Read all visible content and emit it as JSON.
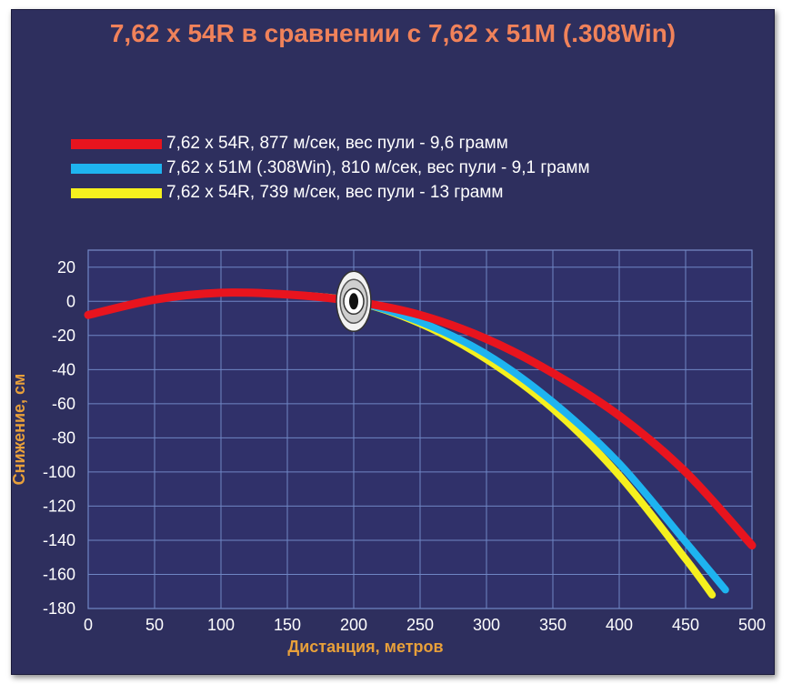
{
  "chart_data": {
    "type": "line",
    "title": "7,62 x 54R в сравнении с 7,62 x 51M (.308Win)",
    "xlabel": "Дистанция, метров",
    "ylabel": "Снижение, см",
    "xlim": [
      0,
      500
    ],
    "ylim": [
      -180,
      30
    ],
    "x_ticks": [
      0,
      50,
      100,
      150,
      200,
      250,
      300,
      350,
      400,
      450,
      500
    ],
    "y_ticks": [
      20,
      0,
      -20,
      -40,
      -60,
      -80,
      -100,
      -120,
      -140,
      -160,
      -180
    ],
    "grid": true,
    "zero_point": {
      "x": 200,
      "y": 0,
      "marker": "target-icon"
    },
    "series": [
      {
        "name": "7,62 x 54R, 877 м/сек, вес пули - 9,6 грамм",
        "color": "#e8141e",
        "x": [
          0,
          50,
          100,
          150,
          200,
          250,
          300,
          350,
          400,
          450,
          500
        ],
        "y": [
          -8,
          1,
          5,
          4,
          0,
          -8,
          -22,
          -42,
          -67,
          -100,
          -143
        ]
      },
      {
        "name": "7,62 x 51M (.308Win), 810 м/сек, вес пули - 9,1 грамм",
        "color": "#1eb4f0",
        "x": [
          0,
          50,
          100,
          150,
          200,
          250,
          300,
          350,
          400,
          450,
          480
        ],
        "y": [
          -8,
          1,
          5,
          4,
          0,
          -12,
          -31,
          -59,
          -95,
          -141,
          -169
        ]
      },
      {
        "name": "7,62 x 54R, 739 м/сек, вес пули - 13 грамм",
        "color": "#f5f01e",
        "x": [
          0,
          50,
          100,
          150,
          200,
          250,
          300,
          350,
          400,
          450,
          470
        ],
        "y": [
          -8,
          1,
          5,
          4,
          0,
          -13,
          -34,
          -63,
          -102,
          -151,
          -172
        ]
      }
    ]
  }
}
